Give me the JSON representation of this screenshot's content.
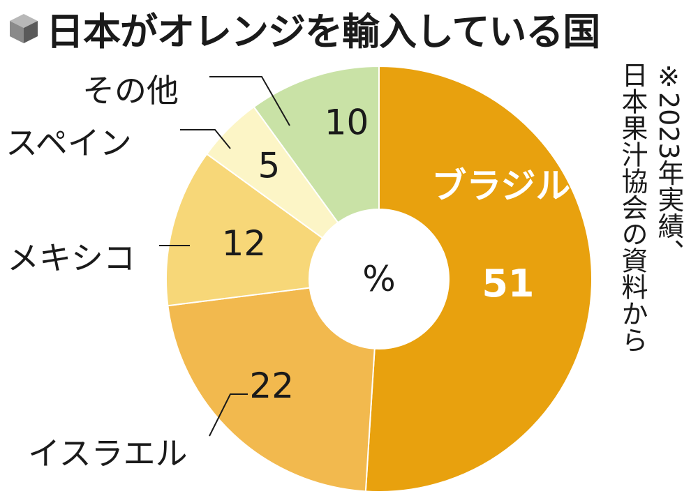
{
  "title": "日本がオレンジを輸入している国",
  "note_lines": [
    "※2023年実績、",
    "日本果汁協会の資料から"
  ],
  "chart_data": {
    "type": "pie",
    "title": "日本がオレンジを輸入している国",
    "unit": "%",
    "slices": [
      {
        "label": "ブラジル",
        "value": 51,
        "color": "#E8A10E"
      },
      {
        "label": "イスラエル",
        "value": 22,
        "color": "#F2B94E"
      },
      {
        "label": "メキシコ",
        "value": 12,
        "color": "#F7D778"
      },
      {
        "label": "スペイン",
        "value": 5,
        "color": "#FCF5C6"
      },
      {
        "label": "その他",
        "value": 10,
        "color": "#C9E2A6"
      }
    ]
  }
}
